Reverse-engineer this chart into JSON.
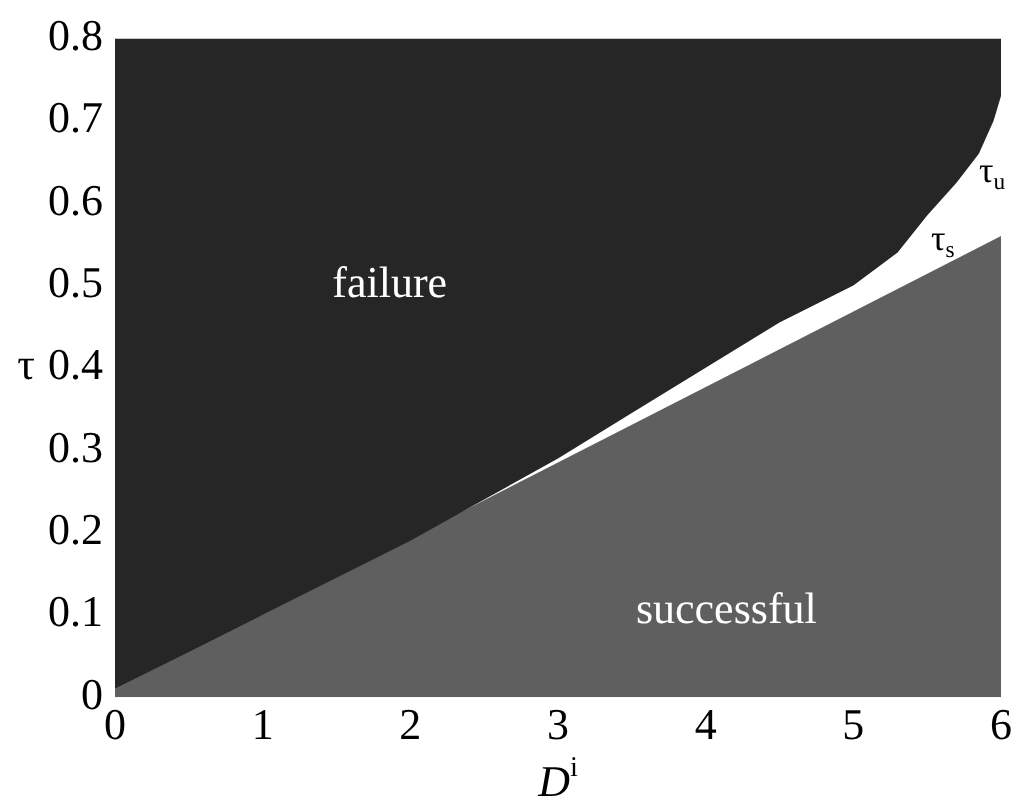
{
  "chart_data": {
    "type": "area",
    "xlabel": "D$^{i}$",
    "ylabel": "τ",
    "series": [
      {
        "name": "τ$_{u}$",
        "color": "#262626",
        "x": [
          0,
          0,
          1,
          2,
          2.4,
          3,
          3.5,
          4,
          4.5,
          5,
          5.3,
          5.5,
          5.7,
          5.85,
          5.95,
          6,
          6
        ],
        "values": [
          0.8,
          0.01,
          0.1,
          0.19,
          0.23,
          0.29,
          0.345,
          0.4,
          0.455,
          0.5,
          0.54,
          0.585,
          0.625,
          0.66,
          0.7,
          0.73,
          0.8
        ]
      },
      {
        "name": "τ$_{s}$",
        "color": "#5f5f5f",
        "x": [
          0,
          6
        ],
        "values": [
          0.01,
          0.56
        ]
      }
    ],
    "annotations": [
      "failure",
      "successful"
    ],
    "xlim": [
      0,
      6
    ],
    "ylim": [
      0,
      0.8
    ],
    "xticks": [
      0,
      1,
      2,
      3,
      4,
      5,
      6
    ],
    "yticks": [
      0,
      0.1,
      0.2,
      0.3,
      0.4,
      0.5,
      0.6,
      0.7,
      0.8
    ],
    "grid": false,
    "legend": false
  }
}
